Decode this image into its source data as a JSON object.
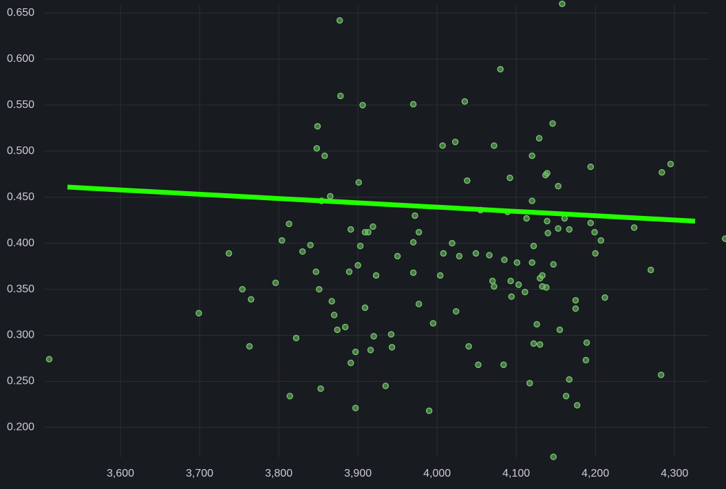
{
  "chart_data": {
    "type": "scatter",
    "color": "#73bf69",
    "x": [
      3510,
      3699,
      3737,
      3754,
      3765,
      3763,
      3796,
      3804,
      3813,
      3814,
      3822,
      3830,
      3840,
      3847,
      3848,
      3849,
      3851,
      3853,
      3854,
      3858,
      3865,
      3867,
      3870,
      3874,
      3877,
      3878,
      3884,
      3889,
      3891,
      3891,
      3897,
      3897,
      3900,
      3901,
      3903,
      3906,
      3909,
      3909,
      3913,
      3916,
      3919,
      3920,
      3923,
      3935,
      3942,
      3943,
      3950,
      3970,
      3970,
      3970,
      3972,
      3977,
      3977,
      3990,
      3995,
      4004,
      4007,
      4008,
      4019,
      4023,
      4024,
      4028,
      4035,
      4038,
      4040,
      4049,
      4052,
      4055,
      4066,
      4070,
      4072,
      4072,
      4080,
      4084,
      4085,
      4089,
      4092,
      4093,
      4094,
      4101,
      4103,
      4111,
      4113,
      4117,
      4120,
      4120,
      4120,
      4122,
      4122,
      4126,
      4129,
      4130,
      4130,
      4133,
      4133,
      4137,
      4138,
      4139,
      4139,
      4140,
      4146,
      4147,
      4147,
      4153,
      4153,
      4155,
      4158,
      4161,
      4163,
      4167,
      4167,
      4175,
      4175,
      4177,
      4188,
      4189,
      4194,
      4194,
      4199,
      4200,
      4207,
      4212,
      4249,
      4270,
      4283,
      4284,
      4295,
      4364
    ],
    "values": [
      0.274,
      0.324,
      0.389,
      0.35,
      0.339,
      0.288,
      0.357,
      0.403,
      0.421,
      0.234,
      0.297,
      0.391,
      0.398,
      0.369,
      0.503,
      0.527,
      0.35,
      0.242,
      0.446,
      0.495,
      0.451,
      0.337,
      0.322,
      0.306,
      0.642,
      0.56,
      0.309,
      0.369,
      0.415,
      0.27,
      0.282,
      0.221,
      0.376,
      0.466,
      0.397,
      0.55,
      0.412,
      0.33,
      0.412,
      0.284,
      0.418,
      0.299,
      0.365,
      0.245,
      0.301,
      0.287,
      0.386,
      0.551,
      0.368,
      0.401,
      0.43,
      0.412,
      0.334,
      0.218,
      0.313,
      0.365,
      0.506,
      0.389,
      0.4,
      0.51,
      0.326,
      0.386,
      0.554,
      0.468,
      0.288,
      0.389,
      0.268,
      0.436,
      0.387,
      0.359,
      0.506,
      0.353,
      0.589,
      0.268,
      0.382,
      0.434,
      0.471,
      0.359,
      0.342,
      0.379,
      0.355,
      0.347,
      0.427,
      0.248,
      0.379,
      0.495,
      0.446,
      0.291,
      0.397,
      0.312,
      0.514,
      0.29,
      0.362,
      0.365,
      0.353,
      0.474,
      0.352,
      0.476,
      0.424,
      0.411,
      0.53,
      0.377,
      0.168,
      0.462,
      0.416,
      0.306,
      0.66,
      0.427,
      0.234,
      0.415,
      0.252,
      0.338,
      0.329,
      0.224,
      0.273,
      0.292,
      0.422,
      0.483,
      0.412,
      0.389,
      0.403,
      0.341,
      0.417,
      0.371,
      0.257,
      0.477,
      0.486,
      0.405
    ],
    "trend_line": {
      "x": [
        3533,
        4326
      ],
      "values": [
        0.461,
        0.424
      ],
      "color": "#22ff00"
    },
    "xlim": [
      3500,
      4365
    ],
    "ylim": [
      0.1674,
      0.6642
    ],
    "xticks": [
      {
        "value": 3600,
        "label": "3,600"
      },
      {
        "value": 3700,
        "label": "3,700"
      },
      {
        "value": 3800,
        "label": "3,800"
      },
      {
        "value": 3900,
        "label": "3,900"
      },
      {
        "value": 4000,
        "label": "4,000"
      },
      {
        "value": 4100,
        "label": "4,100"
      },
      {
        "value": 4200,
        "label": "4,200"
      },
      {
        "value": 4300,
        "label": "4,300"
      }
    ],
    "yticks": [
      {
        "value": 0.2,
        "label": "0.200"
      },
      {
        "value": 0.25,
        "label": "0.250"
      },
      {
        "value": 0.3,
        "label": "0.300"
      },
      {
        "value": 0.35,
        "label": "0.350"
      },
      {
        "value": 0.4,
        "label": "0.400"
      },
      {
        "value": 0.45,
        "label": "0.450"
      },
      {
        "value": 0.5,
        "label": "0.500"
      },
      {
        "value": 0.55,
        "label": "0.550"
      },
      {
        "value": 0.6,
        "label": "0.600"
      },
      {
        "value": 0.65,
        "label": "0.650"
      }
    ],
    "grid": true
  }
}
